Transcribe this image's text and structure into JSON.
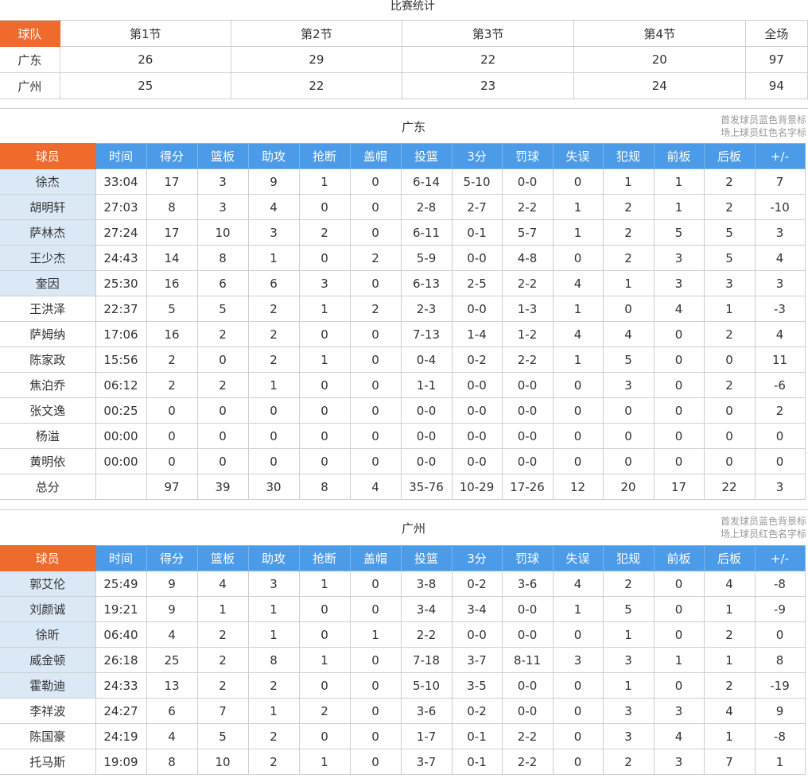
{
  "page_title": "比赛统计",
  "score_table": {
    "headers": [
      "球队",
      "第1节",
      "第2节",
      "第3节",
      "第4节",
      "全场"
    ],
    "rows": [
      [
        "广东",
        "26",
        "29",
        "22",
        "20",
        "97"
      ],
      [
        "广州",
        "25",
        "22",
        "23",
        "24",
        "94"
      ]
    ]
  },
  "legend_note": {
    "line1": "首发球员蓝色背景标",
    "line2": "场上球员红色名字标"
  },
  "stat_headers": [
    "球员",
    "时间",
    "得分",
    "篮板",
    "助攻",
    "抢断",
    "盖帽",
    "投篮",
    "3分",
    "罚球",
    "失误",
    "犯规",
    "前板",
    "后板",
    "+/-"
  ],
  "colors": {
    "header_blue": "#4b9be8",
    "header_orange": "#ee6a2d",
    "starter_background": "#dbe8f6"
  },
  "teams": [
    {
      "name": "广东",
      "rows": [
        {
          "starter": true,
          "cells": [
            "徐杰",
            "33:04",
            "17",
            "3",
            "9",
            "1",
            "0",
            "6-14",
            "5-10",
            "0-0",
            "0",
            "1",
            "1",
            "2",
            "7"
          ]
        },
        {
          "starter": true,
          "cells": [
            "胡明轩",
            "27:03",
            "8",
            "3",
            "4",
            "0",
            "0",
            "2-8",
            "2-7",
            "2-2",
            "1",
            "2",
            "1",
            "2",
            "-10"
          ]
        },
        {
          "starter": true,
          "cells": [
            "萨林杰",
            "27:24",
            "17",
            "10",
            "3",
            "2",
            "0",
            "6-11",
            "0-1",
            "5-7",
            "1",
            "2",
            "5",
            "5",
            "3"
          ]
        },
        {
          "starter": true,
          "cells": [
            "王少杰",
            "24:43",
            "14",
            "8",
            "1",
            "0",
            "2",
            "5-9",
            "0-0",
            "4-8",
            "0",
            "2",
            "3",
            "5",
            "4"
          ]
        },
        {
          "starter": true,
          "cells": [
            "奎因",
            "25:30",
            "16",
            "6",
            "6",
            "3",
            "0",
            "6-13",
            "2-5",
            "2-2",
            "4",
            "1",
            "3",
            "3",
            "3"
          ]
        },
        {
          "starter": false,
          "cells": [
            "王洪泽",
            "22:37",
            "5",
            "5",
            "2",
            "1",
            "2",
            "2-3",
            "0-0",
            "1-3",
            "1",
            "0",
            "4",
            "1",
            "-3"
          ]
        },
        {
          "starter": false,
          "cells": [
            "萨姆纳",
            "17:06",
            "16",
            "2",
            "2",
            "0",
            "0",
            "7-13",
            "1-4",
            "1-2",
            "4",
            "4",
            "0",
            "2",
            "4"
          ]
        },
        {
          "starter": false,
          "cells": [
            "陈家政",
            "15:56",
            "2",
            "0",
            "2",
            "1",
            "0",
            "0-4",
            "0-2",
            "2-2",
            "1",
            "5",
            "0",
            "0",
            "11"
          ]
        },
        {
          "starter": false,
          "cells": [
            "焦泊乔",
            "06:12",
            "2",
            "2",
            "1",
            "0",
            "0",
            "1-1",
            "0-0",
            "0-0",
            "0",
            "3",
            "0",
            "2",
            "-6"
          ]
        },
        {
          "starter": false,
          "cells": [
            "张文逸",
            "00:25",
            "0",
            "0",
            "0",
            "0",
            "0",
            "0-0",
            "0-0",
            "0-0",
            "0",
            "0",
            "0",
            "0",
            "2"
          ]
        },
        {
          "starter": false,
          "cells": [
            "杨溢",
            "00:00",
            "0",
            "0",
            "0",
            "0",
            "0",
            "0-0",
            "0-0",
            "0-0",
            "0",
            "0",
            "0",
            "0",
            "0"
          ]
        },
        {
          "starter": false,
          "cells": [
            "黄明依",
            "00:00",
            "0",
            "0",
            "0",
            "0",
            "0",
            "0-0",
            "0-0",
            "0-0",
            "0",
            "0",
            "0",
            "0",
            "0"
          ]
        },
        {
          "starter": false,
          "cells": [
            "总分",
            "",
            "97",
            "39",
            "30",
            "8",
            "4",
            "35-76",
            "10-29",
            "17-26",
            "12",
            "20",
            "17",
            "22",
            "3"
          ]
        }
      ]
    },
    {
      "name": "广州",
      "rows": [
        {
          "starter": true,
          "cells": [
            "郭艾伦",
            "25:49",
            "9",
            "4",
            "3",
            "1",
            "0",
            "3-8",
            "0-2",
            "3-6",
            "4",
            "2",
            "0",
            "4",
            "-8"
          ]
        },
        {
          "starter": true,
          "cells": [
            "刘颜诚",
            "19:21",
            "9",
            "1",
            "1",
            "0",
            "0",
            "3-4",
            "3-4",
            "0-0",
            "1",
            "5",
            "0",
            "1",
            "-9"
          ]
        },
        {
          "starter": true,
          "cells": [
            "徐昕",
            "06:40",
            "4",
            "2",
            "1",
            "0",
            "1",
            "2-2",
            "0-0",
            "0-0",
            "0",
            "1",
            "0",
            "2",
            "0"
          ]
        },
        {
          "starter": true,
          "cells": [
            "威金顿",
            "26:18",
            "25",
            "2",
            "8",
            "1",
            "0",
            "7-18",
            "3-7",
            "8-11",
            "3",
            "3",
            "1",
            "1",
            "8"
          ]
        },
        {
          "starter": true,
          "cells": [
            "霍勒迪",
            "24:33",
            "13",
            "2",
            "2",
            "0",
            "0",
            "5-10",
            "3-5",
            "0-0",
            "0",
            "1",
            "0",
            "2",
            "-19"
          ]
        },
        {
          "starter": false,
          "cells": [
            "李祥波",
            "24:27",
            "6",
            "7",
            "1",
            "2",
            "0",
            "3-6",
            "0-2",
            "0-0",
            "0",
            "3",
            "3",
            "4",
            "9"
          ]
        },
        {
          "starter": false,
          "cells": [
            "陈国豪",
            "24:19",
            "4",
            "5",
            "2",
            "0",
            "0",
            "1-7",
            "0-1",
            "2-2",
            "0",
            "3",
            "4",
            "1",
            "-8"
          ]
        },
        {
          "starter": false,
          "cells": [
            "托马斯",
            "19:09",
            "8",
            "10",
            "2",
            "1",
            "0",
            "3-7",
            "0-1",
            "2-2",
            "0",
            "2",
            "3",
            "7",
            "1"
          ]
        }
      ]
    }
  ]
}
